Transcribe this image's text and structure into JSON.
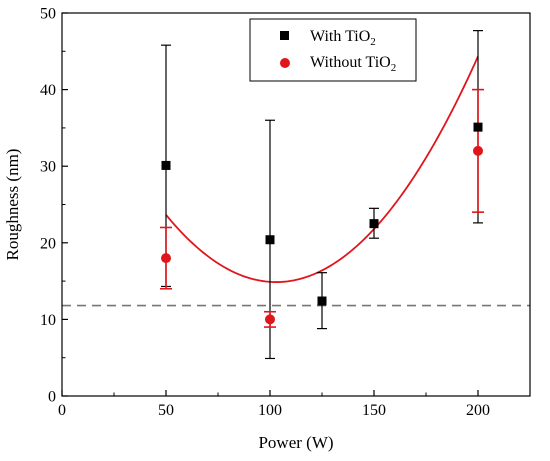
{
  "chart_data": {
    "type": "scatter",
    "xlabel": "Power (W)",
    "ylabel": "Roughness (nm)",
    "xlim": [
      0,
      225
    ],
    "ylim": [
      0,
      50
    ],
    "x_ticks": [
      0,
      50,
      100,
      150,
      200
    ],
    "y_ticks": [
      0,
      10,
      20,
      30,
      40,
      50
    ],
    "legend_placement": "top-center",
    "series": [
      {
        "name": "With TiO",
        "name_sub": "2",
        "marker": "square",
        "color": "#000000",
        "points": [
          {
            "x": 50,
            "y": 30.1,
            "err_low": 14.3,
            "err_high": 45.8
          },
          {
            "x": 100,
            "y": 20.4,
            "err_low": 4.9,
            "err_high": 36.0
          },
          {
            "x": 125,
            "y": 12.4,
            "err_low": 8.8,
            "err_high": 16.1
          },
          {
            "x": 150,
            "y": 22.5,
            "err_low": 20.6,
            "err_high": 24.5
          },
          {
            "x": 200,
            "y": 35.1,
            "err_low": 22.6,
            "err_high": 47.7
          }
        ]
      },
      {
        "name": "Without TiO",
        "name_sub": "2",
        "marker": "circle",
        "color": "#e0161c",
        "points": [
          {
            "x": 50,
            "y": 18.0,
            "err_low": 14.0,
            "err_high": 22.0
          },
          {
            "x": 100,
            "y": 10.0,
            "err_low": 9.0,
            "err_high": 11.0
          },
          {
            "x": 200,
            "y": 32.0,
            "err_low": 24.0,
            "err_high": 40.0
          }
        ]
      }
    ],
    "fit_curve": {
      "color": "#e0161c",
      "x_range": [
        50,
        200
      ],
      "points": [
        [
          50,
          23.8
        ],
        [
          75,
          17.2
        ],
        [
          100,
          14.6
        ],
        [
          125,
          16.6
        ],
        [
          150,
          22.0
        ],
        [
          175,
          31.0
        ],
        [
          200,
          44.3
        ]
      ]
    },
    "reference_line": {
      "y": 11.8,
      "style": "dashed",
      "color": "#777777"
    }
  }
}
